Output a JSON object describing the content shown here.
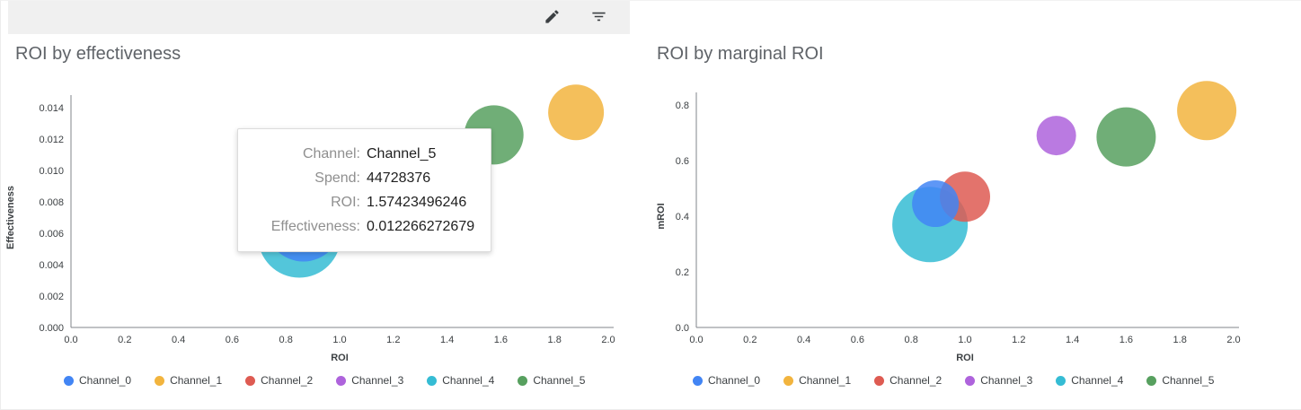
{
  "toolbar": {
    "icons": [
      "edit-icon",
      "filter-list-icon"
    ]
  },
  "channels": [
    {
      "name": "Channel_0",
      "color": "#4285F4"
    },
    {
      "name": "Channel_1",
      "color": "#F2B43E"
    },
    {
      "name": "Channel_2",
      "color": "#DE5B52"
    },
    {
      "name": "Channel_3",
      "color": "#AE63DC"
    },
    {
      "name": "Channel_4",
      "color": "#35BCD4"
    },
    {
      "name": "Channel_5",
      "color": "#57A05F"
    }
  ],
  "tooltip": {
    "labels": [
      "Channel:",
      "Spend:",
      "ROI:",
      "Effectiveness:"
    ],
    "values": [
      "Channel_5",
      "44728376",
      "1.57423496246",
      "0.012266272679"
    ]
  },
  "chart_data": [
    {
      "type": "scatter",
      "title": "ROI by effectiveness",
      "xlabel": "ROI",
      "ylabel": "Effectiveness",
      "xlim": [
        0,
        2.0
      ],
      "ylim": [
        0,
        0.014
      ],
      "xticks": [
        "0.0",
        "0.2",
        "0.4",
        "0.6",
        "0.8",
        "1.0",
        "1.2",
        "1.4",
        "1.6",
        "1.8",
        "2.0"
      ],
      "yticks": [
        "0.000",
        "0.002",
        "0.004",
        "0.006",
        "0.008",
        "0.010",
        "0.012",
        "0.014"
      ],
      "grid": false,
      "legend_position": "bottom",
      "points": [
        {
          "channel": "Channel_4",
          "x": 0.85,
          "y": 0.0058,
          "r": 46
        },
        {
          "channel": "Channel_0",
          "x": 0.865,
          "y": 0.0066,
          "r": 42
        },
        {
          "channel": "Channel_5",
          "x": 1.57423496246,
          "y": 0.012266272679,
          "r": 33
        },
        {
          "channel": "Channel_1",
          "x": 1.88,
          "y": 0.0137,
          "r": 31
        }
      ]
    },
    {
      "type": "scatter",
      "title": "ROI by marginal ROI",
      "xlabel": "ROI",
      "ylabel": "mROI",
      "xlim": [
        0,
        2.0
      ],
      "ylim": [
        0,
        0.8
      ],
      "xticks": [
        "0.0",
        "0.2",
        "0.4",
        "0.6",
        "0.8",
        "1.0",
        "1.2",
        "1.4",
        "1.6",
        "1.8",
        "2.0"
      ],
      "yticks": [
        "0.0",
        "0.2",
        "0.4",
        "0.6",
        "0.8"
      ],
      "grid": false,
      "legend_position": "bottom",
      "points": [
        {
          "channel": "Channel_4",
          "x": 0.87,
          "y": 0.37,
          "r": 42
        },
        {
          "channel": "Channel_2",
          "x": 1.0,
          "y": 0.47,
          "r": 28
        },
        {
          "channel": "Channel_0",
          "x": 0.89,
          "y": 0.445,
          "r": 26
        },
        {
          "channel": "Channel_3",
          "x": 1.34,
          "y": 0.69,
          "r": 22
        },
        {
          "channel": "Channel_5",
          "x": 1.6,
          "y": 0.685,
          "r": 33
        },
        {
          "channel": "Channel_1",
          "x": 1.9,
          "y": 0.78,
          "r": 33
        }
      ]
    }
  ]
}
